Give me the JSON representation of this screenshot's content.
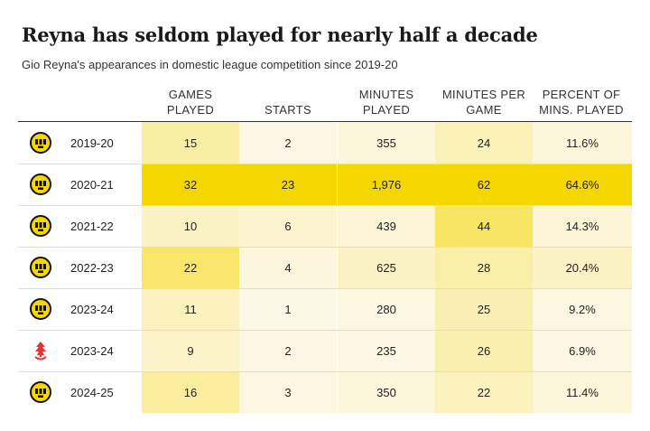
{
  "title": "Reyna has seldom played for nearly half a decade",
  "subtitle": "Gio Reyna's appearances in domestic league competition since 2019-20",
  "table": {
    "columns": [
      "GAMES\nPLAYED",
      "STARTS",
      "MINUTES\nPLAYED",
      "MINUTES PER\nGAME",
      "PERCENT OF\nMINS. PLAYED"
    ],
    "rows": [
      {
        "season": "2019-20",
        "cells": [
          "15",
          "2",
          "355",
          "24",
          "11.6%"
        ]
      },
      {
        "season": "2020-21",
        "cells": [
          "32",
          "23",
          "1,976",
          "62",
          "64.6%"
        ]
      },
      {
        "season": "2021-22",
        "cells": [
          "10",
          "6",
          "439",
          "44",
          "14.3%"
        ]
      },
      {
        "season": "2022-23",
        "cells": [
          "22",
          "4",
          "625",
          "28",
          "20.4%"
        ]
      },
      {
        "season": "2023-24",
        "cells": [
          "11",
          "1",
          "280",
          "25",
          "9.2%"
        ]
      },
      {
        "season": "2023-24",
        "cells": [
          "9",
          "2",
          "235",
          "26",
          "6.9%"
        ]
      },
      {
        "season": "2024-25",
        "cells": [
          "16",
          "3",
          "350",
          "22",
          "11.4%"
        ]
      }
    ]
  }
}
